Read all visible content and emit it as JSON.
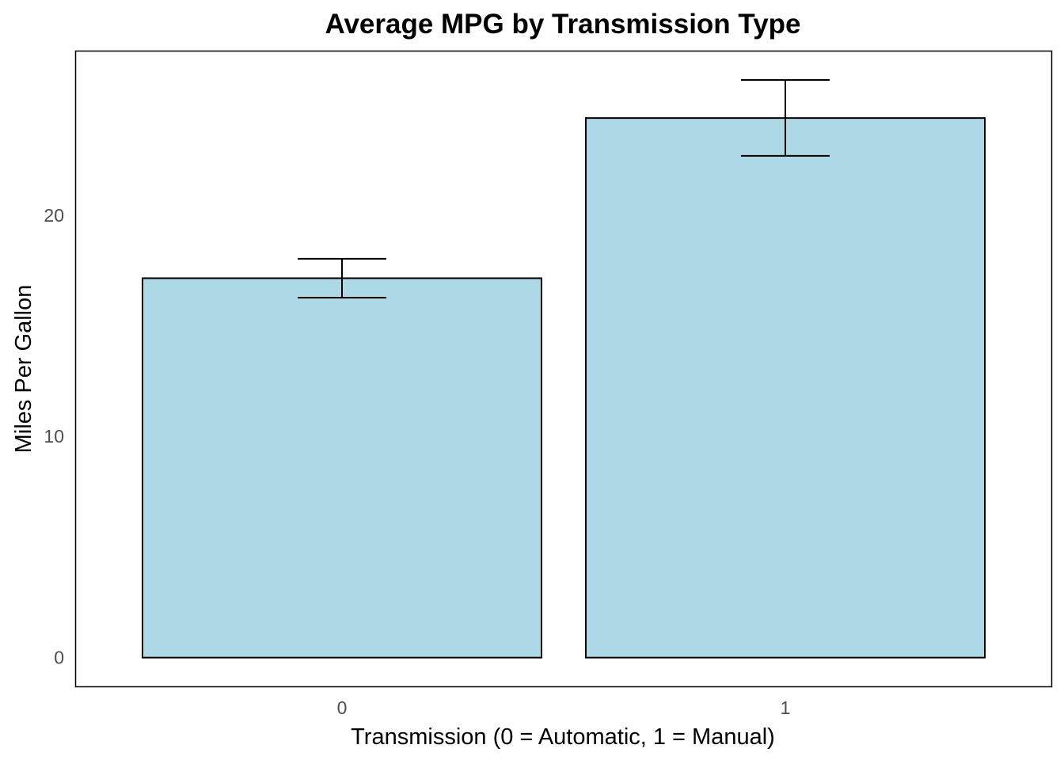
{
  "chart_data": {
    "type": "bar",
    "title": "Average MPG by Transmission Type",
    "xlabel": "Transmission (0 = Automatic, 1 = Manual)",
    "ylabel": "Miles Per Gallon",
    "categories": [
      "0",
      "1"
    ],
    "values": [
      17.15,
      24.39
    ],
    "error_bars": [
      {
        "low": 16.27,
        "high": 18.03
      },
      {
        "low": 22.68,
        "high": 26.11
      }
    ],
    "ylim": [
      -1.3,
      27.4
    ],
    "yticks": [
      0,
      10,
      20
    ],
    "grid": false,
    "legend": "none",
    "bar_fill": "#add8e6",
    "bar_stroke": "#000000",
    "panel_border": "#000000"
  }
}
